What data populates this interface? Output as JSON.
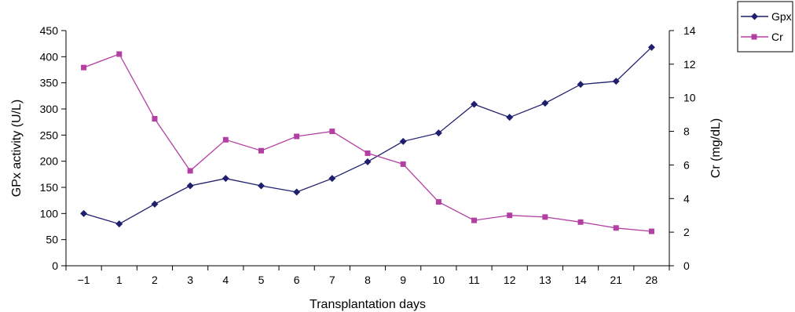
{
  "chart_data": {
    "type": "line",
    "categories": [
      "−1",
      "1",
      "2",
      "3",
      "4",
      "5",
      "6",
      "7",
      "8",
      "9",
      "10",
      "11",
      "12",
      "13",
      "14",
      "21",
      "28"
    ],
    "xlabel": "Transplantation days",
    "ylabel_left": "GPx activity (U/L)",
    "ylabel_right": "Cr (mg/dL)",
    "ylim_left": [
      0,
      450
    ],
    "yticks_left": [
      "0",
      "50",
      "100",
      "150",
      "200",
      "250",
      "300",
      "350",
      "400",
      "450"
    ],
    "ylim_right": [
      0,
      14
    ],
    "yticks_right": [
      "0",
      "2",
      "4",
      "6",
      "8",
      "10",
      "12",
      "14"
    ],
    "grid": false,
    "legend_position": "top-right",
    "series": [
      {
        "name": "Gpx",
        "axis": "left",
        "color": "#1f1f6e",
        "marker": "diamond",
        "values": [
          100,
          80,
          118,
          153,
          167,
          153,
          141,
          167,
          199,
          238,
          254,
          309,
          284,
          311,
          347,
          353,
          418
        ]
      },
      {
        "name": "Cr",
        "axis": "right",
        "color": "#b43fa3",
        "marker": "square",
        "values": [
          11.8,
          12.6,
          8.75,
          5.65,
          7.5,
          6.85,
          7.7,
          8.0,
          6.7,
          6.05,
          3.8,
          2.7,
          3.0,
          2.9,
          2.6,
          2.25,
          2.05
        ]
      }
    ]
  }
}
